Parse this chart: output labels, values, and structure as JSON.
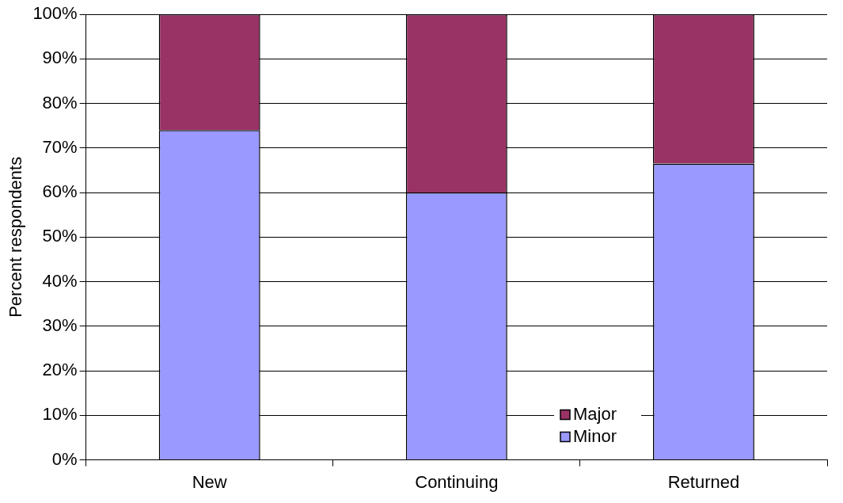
{
  "chart_data": {
    "type": "bar",
    "stacked": true,
    "ylabel": "Percent respondents",
    "categories": [
      "New",
      "Continuing",
      "Returned"
    ],
    "series": [
      {
        "name": "Minor",
        "color": "#9999ff",
        "values": [
          74,
          60,
          66.5
        ]
      },
      {
        "name": "Major",
        "color": "#993366",
        "values": [
          26,
          40,
          33.5
        ]
      }
    ],
    "ylim": [
      0,
      100
    ],
    "yticks": [
      {
        "value": 0,
        "label": "0%"
      },
      {
        "value": 10,
        "label": "10%"
      },
      {
        "value": 20,
        "label": "20%"
      },
      {
        "value": 30,
        "label": "30%"
      },
      {
        "value": 40,
        "label": "40%"
      },
      {
        "value": 50,
        "label": "50%"
      },
      {
        "value": 60,
        "label": "60%"
      },
      {
        "value": 70,
        "label": "70%"
      },
      {
        "value": 80,
        "label": "80%"
      },
      {
        "value": 90,
        "label": "90%"
      },
      {
        "value": 100,
        "label": "100%"
      }
    ],
    "grid": "y",
    "legend": "bottom right"
  }
}
